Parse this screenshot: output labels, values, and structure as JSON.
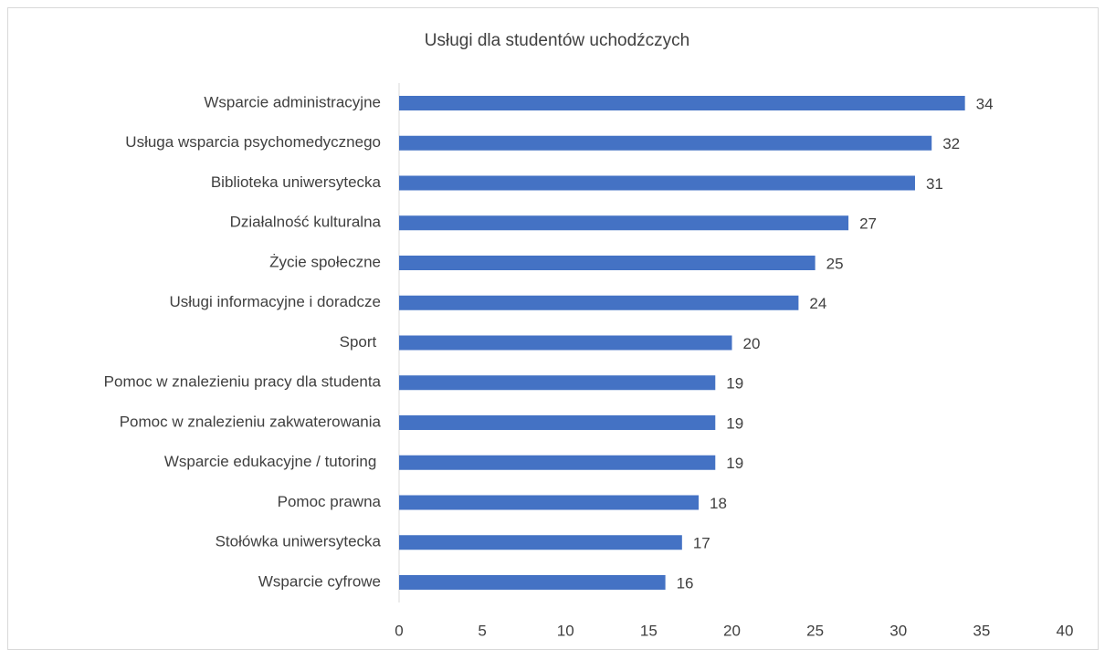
{
  "chart_data": {
    "type": "bar",
    "orientation": "horizontal",
    "title": "Usługi dla studentów uchodźczych",
    "categories": [
      "Wsparcie administracyjne",
      "Usługa wsparcia psychomedycznego",
      "Biblioteka uniwersytecka",
      "Działalność kulturalna",
      "Życie społeczne",
      "Usługi informacyjne i doradcze",
      "Sport ",
      "Pomoc w znalezieniu pracy dla studenta",
      "Pomoc w znalezieniu zakwaterowania",
      "Wsparcie edukacyjne / tutoring ",
      "Pomoc prawna",
      "Stołówka uniwersytecka",
      "Wsparcie cyfrowe"
    ],
    "values": [
      34,
      32,
      31,
      27,
      25,
      24,
      20,
      19,
      19,
      19,
      18,
      17,
      16
    ],
    "color": "#4472c4",
    "xlim": [
      0,
      40
    ],
    "xticks": [
      0,
      5,
      10,
      15,
      20,
      25,
      30,
      35,
      40
    ],
    "grid": false
  }
}
